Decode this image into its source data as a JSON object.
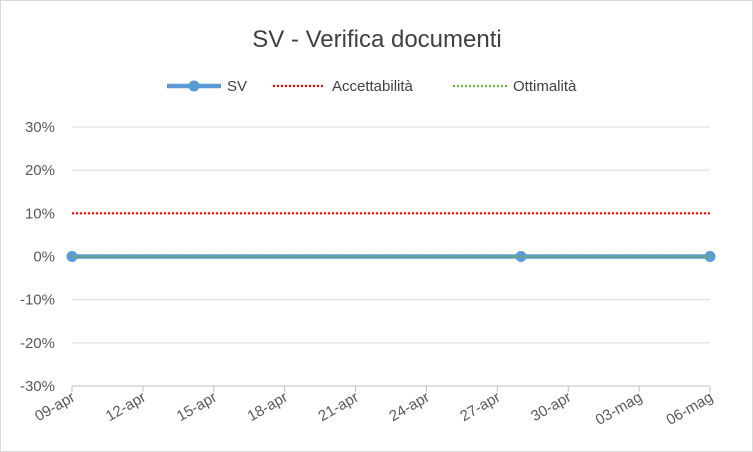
{
  "chart_data": {
    "type": "line",
    "title": "SV - Verifica documenti",
    "xlabel": "",
    "ylabel": "",
    "x_tick_labels": [
      "09-apr",
      "12-apr",
      "15-apr",
      "18-apr",
      "21-apr",
      "24-apr",
      "27-apr",
      "30-apr",
      "03-mag",
      "06-mag"
    ],
    "y_tick_labels": [
      "30%",
      "20%",
      "10%",
      "0%",
      "-10%",
      "-20%",
      "-30%"
    ],
    "ylim": [
      -0.3,
      0.3
    ],
    "xlim": [
      "09-apr",
      "06-mag"
    ],
    "grid": true,
    "legend_position": "top",
    "series": [
      {
        "name": "SV",
        "style": "solid-with-markers",
        "color": "#5b9bd5",
        "points": [
          {
            "x": "09-apr",
            "y": 0
          },
          {
            "x": "28-apr",
            "y": 0
          },
          {
            "x": "06-mag",
            "y": 0
          }
        ]
      },
      {
        "name": "Accettabilità",
        "style": "dotted",
        "color": "#ff0000",
        "points": [
          {
            "x": "09-apr",
            "y": 0.1
          },
          {
            "x": "06-mag",
            "y": 0.1
          }
        ]
      },
      {
        "name": "Ottimalità",
        "style": "dotted",
        "color": "#70ad47",
        "points": [
          {
            "x": "09-apr",
            "y": 0
          },
          {
            "x": "06-mag",
            "y": 0
          }
        ]
      }
    ]
  }
}
